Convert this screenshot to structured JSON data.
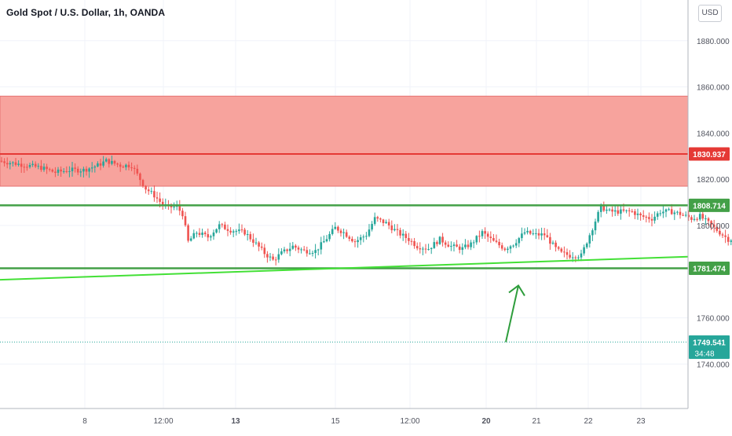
{
  "header": {
    "title": "Gold Spot / U.S. Dollar, 1h, OANDA",
    "currency_label": "USD"
  },
  "colors": {
    "up": "#26a69a",
    "down": "#ef5350",
    "zone_fill": "#f7a39d",
    "zone_line": "#e53935",
    "support_line": "#43a047",
    "trendline": "#43e036",
    "arrow": "#2e9d3c",
    "price_badge": "#26a69a",
    "grid": "#f0f3fa"
  },
  "chart_data": {
    "type": "candlestick",
    "title": "Gold Spot / U.S. Dollar, 1h, OANDA",
    "y_axis": {
      "range": [
        1730,
        1900
      ],
      "ticks": [
        "1880.000",
        "1860.000",
        "1840.000",
        "1820.000",
        "1800.000",
        "1760.000",
        "1740.000"
      ],
      "tick_values": [
        1880,
        1860,
        1840,
        1820,
        1800,
        1760,
        1740
      ]
    },
    "x_axis": {
      "ticks": [
        "8",
        "12:00",
        "13",
        "15",
        "12:00",
        "20",
        "21",
        "22",
        "23"
      ],
      "bold_ticks": [
        "13",
        "20"
      ]
    },
    "path_points": [
      [
        0,
        1828
      ],
      [
        5,
        1827
      ],
      [
        10,
        1826
      ],
      [
        15,
        1825
      ],
      [
        20,
        1823
      ],
      [
        25,
        1824
      ],
      [
        30,
        1824
      ],
      [
        35,
        1826
      ],
      [
        38,
        1828
      ],
      [
        43,
        1826
      ],
      [
        47,
        1826
      ],
      [
        49,
        1822
      ],
      [
        52,
        1816
      ],
      [
        55,
        1813
      ],
      [
        58,
        1809
      ],
      [
        60,
        1808
      ],
      [
        63,
        1808
      ],
      [
        65,
        1805
      ],
      [
        67,
        1793
      ],
      [
        70,
        1797
      ],
      [
        74,
        1795
      ],
      [
        78,
        1800
      ],
      [
        82,
        1798
      ],
      [
        87,
        1797
      ],
      [
        91,
        1792
      ],
      [
        94,
        1788
      ],
      [
        97,
        1785
      ],
      [
        100,
        1788
      ],
      [
        104,
        1791
      ],
      [
        108,
        1789
      ],
      [
        112,
        1789
      ],
      [
        115,
        1793
      ],
      [
        119,
        1799
      ],
      [
        122,
        1797
      ],
      [
        126,
        1793
      ],
      [
        130,
        1796
      ],
      [
        133,
        1803
      ],
      [
        137,
        1801
      ],
      [
        141,
        1797
      ],
      [
        145,
        1794
      ],
      [
        148,
        1791
      ],
      [
        152,
        1790
      ],
      [
        156,
        1794
      ],
      [
        160,
        1791
      ],
      [
        164,
        1790
      ],
      [
        167,
        1792
      ],
      [
        171,
        1797
      ],
      [
        175,
        1793
      ],
      [
        179,
        1790
      ],
      [
        182,
        1792
      ],
      [
        186,
        1797
      ],
      [
        190,
        1796
      ],
      [
        193,
        1796
      ],
      [
        197,
        1790
      ],
      [
        199,
        1788
      ],
      [
        202,
        1787
      ],
      [
        206,
        1787
      ],
      [
        209,
        1796
      ],
      [
        213,
        1808
      ],
      [
        216,
        1806
      ],
      [
        220,
        1806
      ],
      [
        223,
        1806
      ],
      [
        224,
        1806
      ],
      [
        227,
        1804
      ],
      [
        231,
        1803
      ],
      [
        234,
        1806
      ],
      [
        238,
        1806
      ],
      [
        241,
        1805
      ],
      [
        245,
        1803
      ],
      [
        248,
        1804
      ],
      [
        252,
        1800
      ],
      [
        256,
        1796
      ],
      [
        258,
        1794
      ]
    ],
    "annotations": {
      "resistance_zone": {
        "top": 1856,
        "bottom": 1817,
        "mid_line": 1830.937,
        "label": "1830.937"
      },
      "support_upper": {
        "value": 1808.714,
        "label": "1808.714"
      },
      "support_lower": {
        "value": 1781.474,
        "label": "1781.474"
      },
      "current_price": {
        "value": 1749.541,
        "label": "1749.541",
        "countdown": "34:48"
      },
      "trendline": {
        "from": 1776.5,
        "to": 1786.5
      },
      "projection_arrow": {
        "from": 1749.5,
        "to": 1774
      }
    }
  }
}
